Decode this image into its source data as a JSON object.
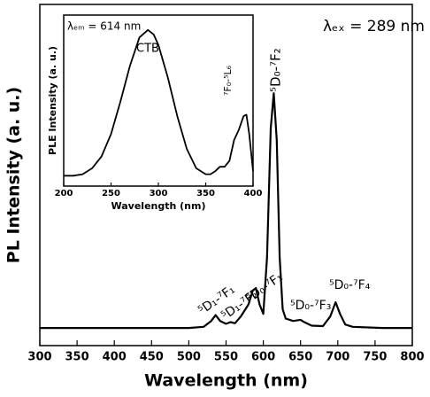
{
  "chart_data": [
    {
      "type": "line",
      "xlabel": "Wavelength (nm)",
      "ylabel": "PL Intensity (a. u.)",
      "annotations": [
        "λₑₓ = 289 nm",
        "⁵D₁-⁷F₁",
        "⁵D₁-⁷F₂",
        "⁵D₀-⁷F₁",
        "⁵D₀-⁷F₂",
        "⁵D₀-⁷F₃",
        "⁵D₀-⁷F₄"
      ],
      "x": [
        300,
        350,
        400,
        450,
        500,
        520,
        530,
        536,
        542,
        550,
        556,
        562,
        570,
        580,
        586,
        590,
        595,
        600,
        605,
        610,
        614,
        618,
        622,
        626,
        630,
        640,
        650,
        655,
        665,
        680,
        690,
        697,
        703,
        710,
        720,
        760,
        800
      ],
      "values": [
        0,
        0,
        0,
        0,
        0,
        0.005,
        0.03,
        0.055,
        0.03,
        0.018,
        0.025,
        0.02,
        0.05,
        0.1,
        0.16,
        0.17,
        0.1,
        0.06,
        0.3,
        0.85,
        1.0,
        0.8,
        0.3,
        0.08,
        0.04,
        0.03,
        0.035,
        0.025,
        0.01,
        0.008,
        0.05,
        0.11,
        0.06,
        0.015,
        0.005,
        0,
        0
      ],
      "color": "#000000",
      "xlim": [
        300,
        800
      ],
      "xticks": [
        300,
        350,
        400,
        450,
        500,
        550,
        600,
        650,
        700,
        750,
        800
      ],
      "ylim": [
        -0.075,
        1.378
      ]
    },
    {
      "type": "line",
      "xlabel": "Wavelength (nm)",
      "ylabel": "PLE Intensity (a. u.)",
      "annotations": [
        "λₑₘ = 614 nm",
        "CTB",
        "⁷F₀-⁵L₆"
      ],
      "x": [
        200,
        210,
        220,
        230,
        240,
        250,
        260,
        270,
        280,
        289,
        295,
        300,
        310,
        320,
        330,
        340,
        350,
        355,
        360,
        365,
        370,
        375,
        380,
        385,
        390,
        393,
        396,
        400
      ],
      "values": [
        0.02,
        0.02,
        0.03,
        0.07,
        0.15,
        0.3,
        0.52,
        0.76,
        0.95,
        1.0,
        0.97,
        0.9,
        0.68,
        0.42,
        0.2,
        0.07,
        0.03,
        0.03,
        0.05,
        0.08,
        0.08,
        0.12,
        0.26,
        0.33,
        0.42,
        0.43,
        0.3,
        0.05
      ],
      "color": "#000000",
      "xlim": [
        200,
        400
      ],
      "xticks": [
        200,
        250,
        300,
        350,
        400
      ],
      "ylim": [
        -0.05,
        1.1
      ]
    }
  ]
}
